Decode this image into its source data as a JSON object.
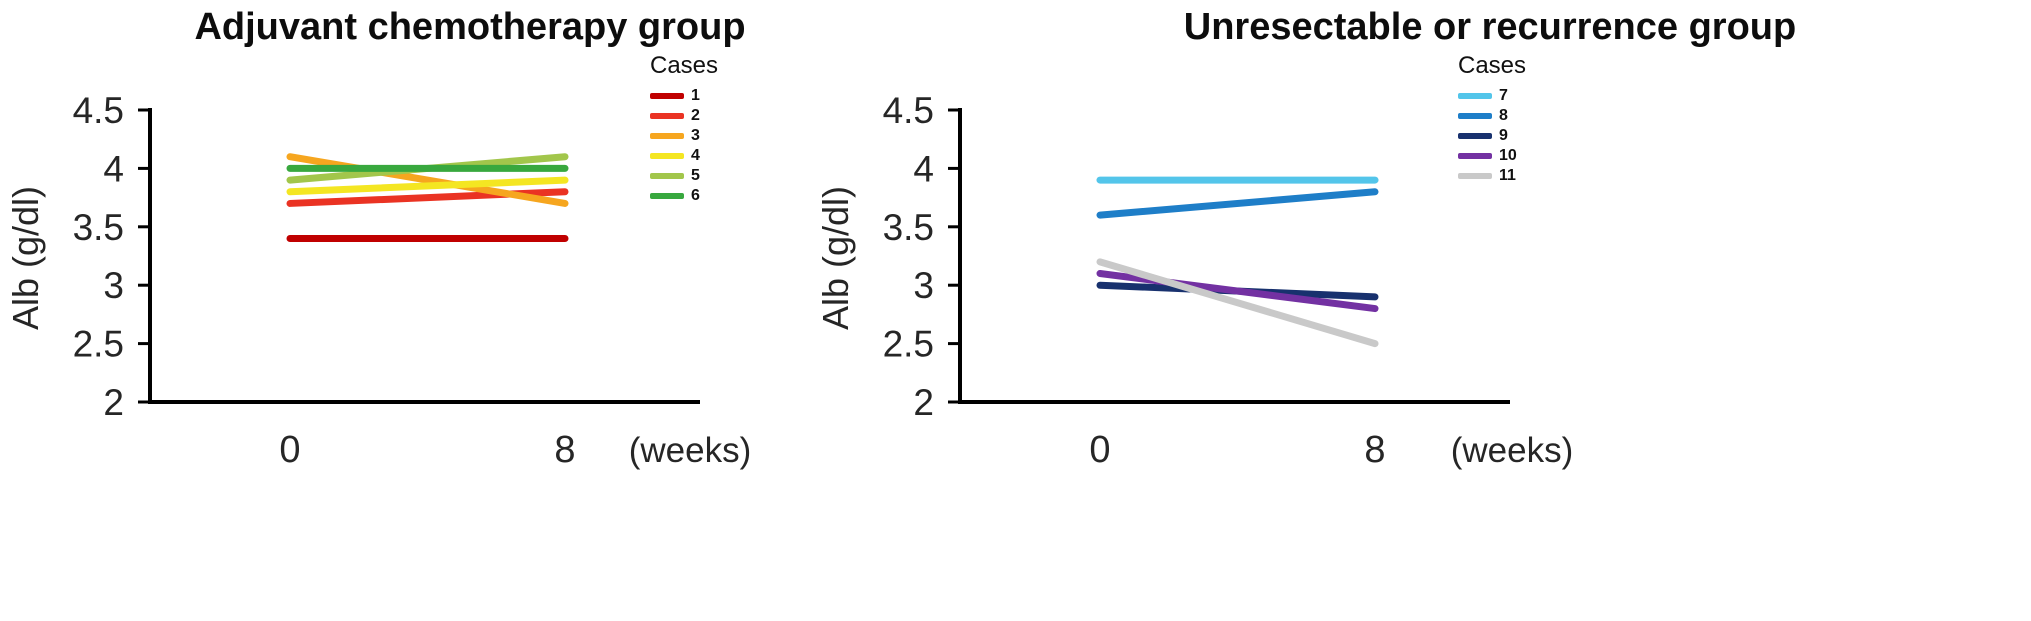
{
  "chart_data": [
    {
      "type": "line",
      "title": "Adjuvant chemotherapy group",
      "ylabel": "Alb (g/dl)",
      "xlabel": "(weeks)",
      "legend_title": "Cases",
      "legend_position": "top-right",
      "grid": false,
      "x": [
        0,
        8
      ],
      "x_tick_labels": [
        "0",
        "8"
      ],
      "ylim": [
        2,
        4.5
      ],
      "y_ticks": [
        4.5,
        4,
        3.5,
        3,
        2.5,
        2
      ],
      "series": [
        {
          "name": "1",
          "color": "#c00000",
          "values": [
            3.4,
            3.4
          ]
        },
        {
          "name": "2",
          "color": "#ea3323",
          "values": [
            3.7,
            3.8
          ]
        },
        {
          "name": "3",
          "color": "#f6a61f",
          "values": [
            4.1,
            3.7
          ]
        },
        {
          "name": "4",
          "color": "#f4e622",
          "values": [
            3.8,
            3.9
          ]
        },
        {
          "name": "5",
          "color": "#a2c64b",
          "values": [
            3.9,
            4.1
          ]
        },
        {
          "name": "6",
          "color": "#38a83e",
          "values": [
            4.0,
            4.0
          ]
        }
      ]
    },
    {
      "type": "line",
      "title": "Unresectable or recurrence group",
      "ylabel": "Alb (g/dl)",
      "xlabel": "(weeks)",
      "legend_title": "Cases",
      "legend_position": "top-right",
      "grid": false,
      "x": [
        0,
        8
      ],
      "x_tick_labels": [
        "0",
        "8"
      ],
      "ylim": [
        2,
        4.5
      ],
      "y_ticks": [
        4.5,
        4,
        3.5,
        3,
        2.5,
        2
      ],
      "series": [
        {
          "name": "7",
          "color": "#53c5ea",
          "values": [
            3.9,
            3.9
          ]
        },
        {
          "name": "8",
          "color": "#1e7ec8",
          "values": [
            3.6,
            3.8
          ]
        },
        {
          "name": "9",
          "color": "#18316e",
          "values": [
            3.0,
            2.9
          ]
        },
        {
          "name": "10",
          "color": "#7331a2",
          "values": [
            3.1,
            2.8
          ]
        },
        {
          "name": "11",
          "color": "#c9c9c9",
          "values": [
            3.2,
            2.5
          ]
        }
      ]
    }
  ]
}
